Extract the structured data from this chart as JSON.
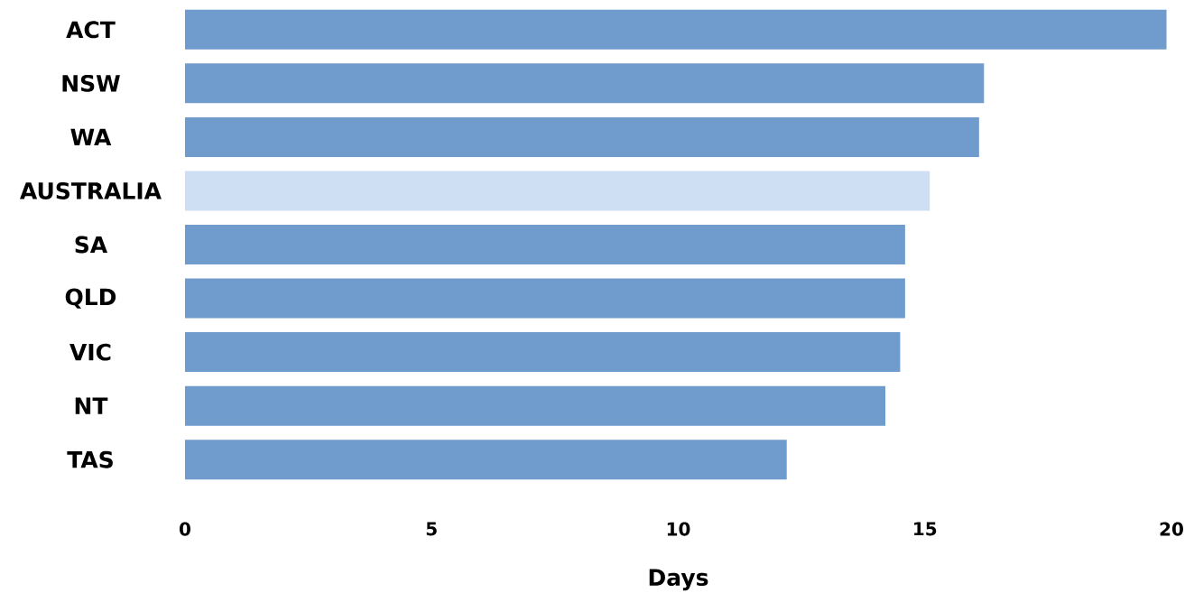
{
  "chart_data": {
    "type": "bar",
    "orientation": "horizontal",
    "xlabel": "Days",
    "categories": [
      "ACT",
      "NSW",
      "WA",
      "AUSTRALIA",
      "SA",
      "QLD",
      "VIC",
      "NT",
      "TAS"
    ],
    "values": [
      19.9,
      16.2,
      16.1,
      15.1,
      14.6,
      14.6,
      14.5,
      14.2,
      12.2
    ],
    "colors": [
      "#6f9bcd",
      "#6f9bcd",
      "#6f9bcd",
      "#cfdff3",
      "#6f9bcd",
      "#6f9bcd",
      "#6f9bcd",
      "#6f9bcd",
      "#6f9bcd"
    ],
    "xlim": [
      0,
      20
    ],
    "xticks": [
      0,
      5,
      10,
      15,
      20
    ]
  }
}
